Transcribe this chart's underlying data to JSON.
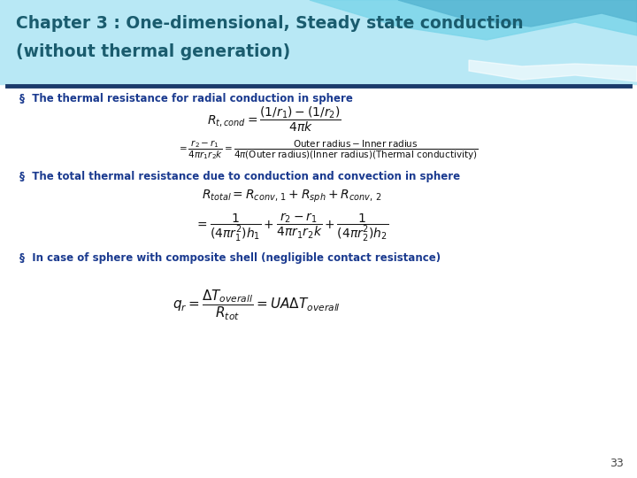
{
  "title_line1": "Chapter 3 : One-dimensional, Steady state conduction",
  "title_line2": "(without thermal generation)",
  "title_color": "#1a5c6e",
  "divider_color": "#1a3a6b",
  "bullet_color": "#1a3a8f",
  "bg_color": "#ffffff",
  "page_number": "33",
  "header_bg": "#b8e8f5",
  "wave1_color": "#7dd6ea",
  "wave2_color": "#5ab8d4",
  "wave3_color": "#ffffff",
  "bullet1_text": "The thermal resistance for radial conduction in sphere",
  "bullet2_text": "The total thermal resistance due to conduction and convection in sphere",
  "bullet3_text": "In case of sphere with composite shell (negligible contact resistance)",
  "eq_color": "#111111"
}
